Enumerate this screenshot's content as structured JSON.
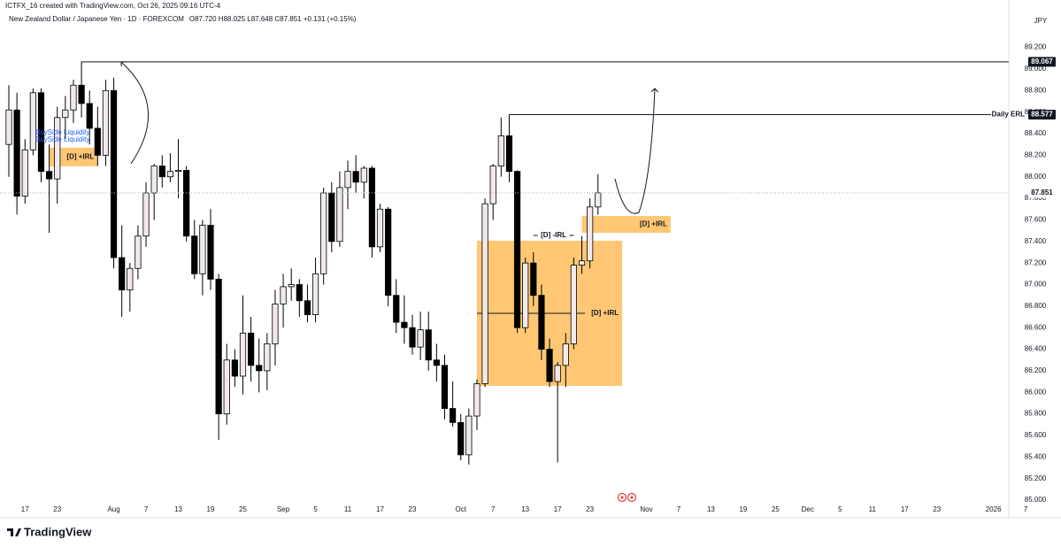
{
  "header": {
    "attribution": "ICTFX_16 created with TradingView.com, Oct 26, 2025 09:16 UTC-4",
    "logo": "TradingView"
  },
  "chart_data": {
    "type": "candlestick",
    "symbol": "New Zealand Dollar / Japanese Yen · 1D · FOREXCOM",
    "ohlc_legend": "O87.720 H88.025 L87.648 C87.851 +0.131 (+0.15%)",
    "currency": "JPY",
    "x": [
      "2025-07-15",
      "2025-07-16",
      "2025-07-17",
      "2025-07-18",
      "2025-07-21",
      "2025-07-22",
      "2025-07-23",
      "2025-07-24",
      "2025-07-25",
      "2025-07-28",
      "2025-07-29",
      "2025-07-30",
      "2025-07-31",
      "2025-08-01",
      "2025-08-04",
      "2025-08-05",
      "2025-08-06",
      "2025-08-07",
      "2025-08-08",
      "2025-08-11",
      "2025-08-12",
      "2025-08-13",
      "2025-08-14",
      "2025-08-15",
      "2025-08-18",
      "2025-08-19",
      "2025-08-20",
      "2025-08-21",
      "2025-08-22",
      "2025-08-25",
      "2025-08-26",
      "2025-08-27",
      "2025-08-28",
      "2025-08-29",
      "2025-09-01",
      "2025-09-02",
      "2025-09-03",
      "2025-09-04",
      "2025-09-05",
      "2025-09-08",
      "2025-09-09",
      "2025-09-10",
      "2025-09-11",
      "2025-09-12",
      "2025-09-15",
      "2025-09-16",
      "2025-09-17",
      "2025-09-18",
      "2025-09-19",
      "2025-09-22",
      "2025-09-23",
      "2025-09-24",
      "2025-09-25",
      "2025-09-26",
      "2025-09-29",
      "2025-09-30",
      "2025-10-01",
      "2025-10-02",
      "2025-10-03",
      "2025-10-06",
      "2025-10-07",
      "2025-10-08",
      "2025-10-09",
      "2025-10-10",
      "2025-10-13",
      "2025-10-14",
      "2025-10-15",
      "2025-10-16",
      "2025-10-17",
      "2025-10-20",
      "2025-10-21",
      "2025-10-22",
      "2025-10-23",
      "2025-10-24"
    ],
    "open": [
      88.3,
      88.62,
      87.82,
      88.25,
      88.78,
      88.05,
      87.98,
      88.55,
      88.62,
      88.85,
      88.68,
      88.45,
      88.2,
      88.8,
      87.25,
      86.95,
      87.15,
      87.45,
      87.85,
      88.1,
      88.0,
      88.05,
      88.06,
      87.45,
      87.1,
      87.55,
      87.05,
      85.8,
      86.3,
      86.15,
      86.55,
      86.25,
      86.2,
      86.45,
      86.82,
      86.98,
      87.0,
      86.85,
      86.72,
      87.1,
      87.85,
      87.4,
      87.9,
      88.05,
      87.95,
      88.08,
      87.35,
      87.7,
      86.9,
      86.65,
      86.6,
      86.42,
      86.58,
      86.3,
      86.25,
      85.85,
      85.72,
      85.42,
      85.78,
      86.08,
      87.75,
      88.1,
      88.38,
      88.05,
      86.6,
      87.2,
      86.9,
      86.4,
      86.1,
      86.25,
      86.45,
      87.18,
      87.22,
      87.72
    ],
    "high": [
      88.85,
      88.78,
      88.35,
      88.82,
      88.82,
      88.3,
      88.65,
      88.75,
      88.9,
      89.067,
      88.8,
      88.65,
      88.9,
      88.92,
      87.55,
      87.2,
      87.55,
      87.95,
      88.12,
      88.2,
      88.22,
      88.35,
      88.1,
      87.6,
      87.6,
      87.7,
      87.1,
      86.45,
      86.4,
      86.9,
      86.7,
      86.5,
      86.55,
      86.95,
      87.1,
      87.15,
      87.05,
      87.0,
      87.25,
      87.9,
      87.95,
      88.05,
      88.15,
      88.2,
      88.1,
      88.1,
      87.75,
      87.72,
      87.05,
      86.9,
      86.72,
      86.75,
      86.75,
      86.45,
      86.35,
      86.1,
      85.8,
      85.85,
      86.12,
      87.8,
      88.12,
      88.55,
      88.577,
      88.06,
      87.25,
      87.3,
      87.0,
      86.5,
      86.28,
      86.55,
      87.25,
      87.45,
      87.8,
      88.025
    ],
    "low": [
      88.0,
      87.65,
      87.75,
      88.2,
      87.95,
      87.48,
      87.75,
      88.35,
      88.5,
      88.55,
      88.3,
      88.1,
      88.1,
      87.15,
      86.7,
      86.75,
      87.05,
      87.35,
      87.6,
      87.9,
      87.95,
      87.8,
      87.4,
      87.05,
      86.9,
      86.95,
      85.56,
      85.7,
      86.05,
      85.98,
      86.1,
      86.0,
      86.02,
      86.25,
      86.6,
      86.85,
      86.7,
      86.65,
      86.65,
      87.0,
      87.3,
      87.35,
      87.7,
      87.85,
      87.8,
      87.25,
      87.3,
      86.8,
      86.55,
      86.45,
      86.35,
      86.3,
      86.2,
      86.1,
      85.75,
      85.68,
      85.37,
      85.33,
      85.65,
      86.05,
      87.6,
      88.0,
      87.95,
      86.55,
      86.55,
      86.8,
      86.3,
      86.05,
      85.35,
      86.05,
      86.4,
      87.1,
      87.15,
      87.648
    ],
    "close": [
      88.62,
      87.82,
      88.25,
      88.78,
      88.05,
      87.98,
      88.55,
      88.62,
      88.85,
      88.68,
      88.45,
      88.2,
      88.8,
      87.25,
      86.95,
      87.15,
      87.45,
      87.85,
      88.1,
      88.0,
      88.05,
      88.06,
      87.45,
      87.1,
      87.55,
      87.05,
      85.8,
      86.3,
      86.15,
      86.55,
      86.25,
      86.2,
      86.45,
      86.82,
      86.98,
      87.0,
      86.85,
      86.72,
      87.1,
      87.85,
      87.4,
      87.9,
      88.05,
      87.95,
      88.08,
      87.35,
      87.7,
      86.9,
      86.65,
      86.6,
      86.42,
      86.58,
      86.3,
      86.25,
      85.85,
      85.72,
      85.42,
      85.78,
      86.08,
      87.75,
      88.1,
      88.38,
      88.05,
      86.6,
      87.2,
      86.9,
      86.4,
      86.1,
      86.25,
      86.45,
      87.18,
      87.22,
      87.72,
      87.851
    ],
    "up_color": "#f2eaea",
    "down_color": "#000000",
    "zone_color": "#ffb74d",
    "ylim": [
      84.877,
      89.394
    ],
    "yticks": [
      {
        "value": 85,
        "label": "85.000"
      },
      {
        "value": 85.2,
        "label": "85.200"
      },
      {
        "value": 85.4,
        "label": "85.400"
      },
      {
        "value": 85.6,
        "label": "85.600"
      },
      {
        "value": 85.8,
        "label": "85.800"
      },
      {
        "value": 86,
        "label": "86.000"
      },
      {
        "value": 86.2,
        "label": "86.200"
      },
      {
        "value": 86.4,
        "label": "86.400"
      },
      {
        "value": 86.6,
        "label": "86.600"
      },
      {
        "value": 86.8,
        "label": "86.800"
      },
      {
        "value": 87,
        "label": "87.000"
      },
      {
        "value": 87.2,
        "label": "87.200"
      },
      {
        "value": 87.4,
        "label": "87.400"
      },
      {
        "value": 87.6,
        "label": "87.600"
      },
      {
        "value": 87.8,
        "label": "87.800"
      },
      {
        "value": 88,
        "label": "88.000"
      },
      {
        "value": 88.2,
        "label": "88.200"
      },
      {
        "value": 88.4,
        "label": "88.400"
      },
      {
        "value": 88.6,
        "label": "88.600"
      },
      {
        "value": 88.8,
        "label": "88.800"
      },
      {
        "value": 89,
        "label": "89.000"
      },
      {
        "value": 89.2,
        "label": "89.200"
      }
    ],
    "xticks": [
      {
        "value": "2025-07-17",
        "label": "17"
      },
      {
        "value": "2025-07-23",
        "label": "23"
      },
      {
        "value": "2025-08-01",
        "label": "Aug"
      },
      {
        "value": "2025-08-07",
        "label": "7"
      },
      {
        "value": "2025-08-13",
        "label": "13"
      },
      {
        "value": "2025-08-19",
        "label": "19"
      },
      {
        "value": "2025-08-25",
        "label": "25"
      },
      {
        "value": "2025-09-01",
        "label": "Sep"
      },
      {
        "value": "2025-09-05",
        "label": "5"
      },
      {
        "value": "2025-09-11",
        "label": "11"
      },
      {
        "value": "2025-09-17",
        "label": "17"
      },
      {
        "value": "2025-09-23",
        "label": "23"
      },
      {
        "value": "2025-10-01",
        "label": "Oct"
      },
      {
        "value": "2025-10-07",
        "label": "7"
      },
      {
        "value": "2025-10-13",
        "label": "13"
      },
      {
        "value": "2025-10-17",
        "label": "17"
      },
      {
        "value": "2025-10-23",
        "label": "23"
      },
      {
        "value": "2025-11-03",
        "label": "Nov"
      },
      {
        "value": "2025-11-07",
        "label": "7"
      },
      {
        "value": "2025-11-13",
        "label": "13"
      },
      {
        "value": "2025-11-19",
        "label": "19"
      },
      {
        "value": "2025-11-25",
        "label": "25"
      },
      {
        "value": "2025-12-01",
        "label": "Dec"
      },
      {
        "value": "2025-12-05",
        "label": "5"
      },
      {
        "value": "2025-12-11",
        "label": "11"
      },
      {
        "value": "2025-12-17",
        "label": "17"
      },
      {
        "value": "2025-12-23",
        "label": "23"
      },
      {
        "value": "2026-01-01",
        "label": "2026"
      },
      {
        "value": "2026-01-07",
        "label": "7"
      }
    ],
    "grid": false,
    "levels": [
      {
        "value": 89.067,
        "start": "2025-07-28"
      },
      {
        "value": 88.577,
        "start": "2025-10-09",
        "label": "Daily ERL"
      },
      {
        "value": 87.456,
        "start": "2025-10-14",
        "end": "2025-10-21",
        "label": "[D] -IRL"
      }
    ],
    "zones": [
      {
        "top": 88.27,
        "bottom": 88.097,
        "start": "2025-07-22",
        "end": "2025-07-30",
        "label": "[D] +IRL"
      },
      {
        "top": 87.407,
        "bottom": 86.06,
        "start": "2025-10-03",
        "end": "2025-10-29",
        "line": 86.733,
        "label": "[D] +IRL"
      },
      {
        "top": 87.636,
        "bottom": 87.48,
        "start": "2025-10-22",
        "end": "2025-11-06",
        "label": "[D] +IRL"
      }
    ],
    "annotations": [
      "BuySide Liquidity",
      "BuySide Liquidity"
    ]
  }
}
